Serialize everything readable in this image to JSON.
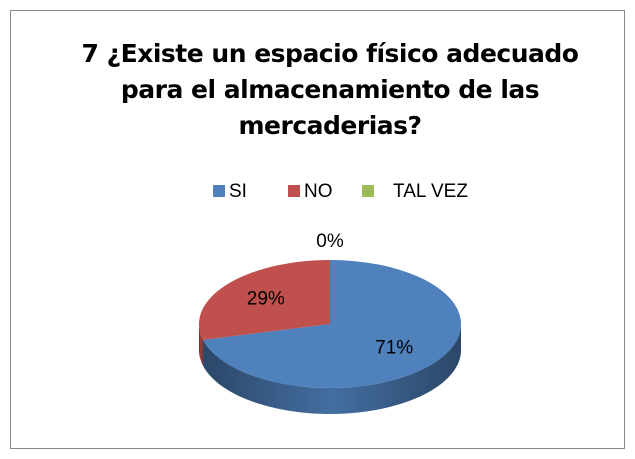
{
  "chart_data": {
    "type": "pie",
    "title": "7 ¿Existe un espacio físico adecuado para el almacenamiento de las mercaderias?",
    "categories": [
      "SI",
      "NO",
      "TAL VEZ"
    ],
    "values": [
      71,
      29,
      0
    ],
    "value_labels": [
      "71%",
      "29%",
      "0%"
    ],
    "colors": [
      "#4f81bd",
      "#c0504d",
      "#9bbb59"
    ],
    "legend": "top"
  }
}
